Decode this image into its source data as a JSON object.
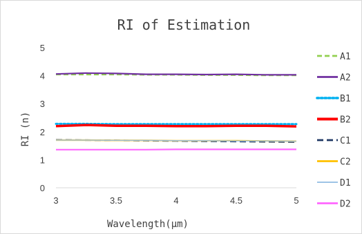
{
  "chart_data": {
    "type": "line",
    "title": "RI of Estimation",
    "xlabel": "Wavelength(μm)",
    "ylabel": "RI (n)",
    "xlim": [
      3,
      5
    ],
    "ylim": [
      0,
      5
    ],
    "x_ticks": [
      "3",
      "3.5",
      "4",
      "4.5",
      "5"
    ],
    "y_ticks": [
      "0",
      "1",
      "2",
      "3",
      "4",
      "5"
    ],
    "grid": false,
    "legend_position": "right",
    "x": [
      3,
      3.25,
      3.5,
      3.75,
      4,
      4.25,
      4.5,
      4.75,
      5
    ],
    "series": [
      {
        "name": "A1",
        "color": "#92d050",
        "dash": "dash",
        "values": [
          4.04,
          4.04,
          4.04,
          4.03,
          4.03,
          4.02,
          4.02,
          4.01,
          4.01
        ]
      },
      {
        "name": "A2",
        "color": "#7030a0",
        "dash": "solid",
        "values": [
          4.06,
          4.09,
          4.08,
          4.05,
          4.05,
          4.04,
          4.05,
          4.03,
          4.03
        ]
      },
      {
        "name": "B1",
        "color": "#00b0f0",
        "dash": "dot",
        "values": [
          2.28,
          2.28,
          2.27,
          2.27,
          2.27,
          2.27,
          2.27,
          2.27,
          2.27
        ]
      },
      {
        "name": "B2",
        "color": "#ff0000",
        "dash": "solid",
        "values": [
          2.2,
          2.24,
          2.21,
          2.21,
          2.2,
          2.2,
          2.21,
          2.21,
          2.19
        ]
      },
      {
        "name": "C1",
        "color": "#1f3864",
        "dash": "longdash",
        "values": [
          1.71,
          1.7,
          1.69,
          1.68,
          1.67,
          1.66,
          1.65,
          1.64,
          1.63
        ]
      },
      {
        "name": "C2",
        "color": "#ffc000",
        "dash": "solid",
        "values": [
          1.7,
          1.7,
          1.69,
          1.69,
          1.68,
          1.68,
          1.68,
          1.67,
          1.66
        ]
      },
      {
        "name": "D1",
        "color": "#9dc3e6",
        "dash": "solid",
        "values": [
          1.7,
          1.7,
          1.69,
          1.69,
          1.68,
          1.68,
          1.67,
          1.67,
          1.66
        ]
      },
      {
        "name": "D2",
        "color": "#ff66ff",
        "dash": "solid",
        "values": [
          1.36,
          1.36,
          1.36,
          1.36,
          1.37,
          1.37,
          1.37,
          1.37,
          1.37
        ]
      }
    ]
  }
}
